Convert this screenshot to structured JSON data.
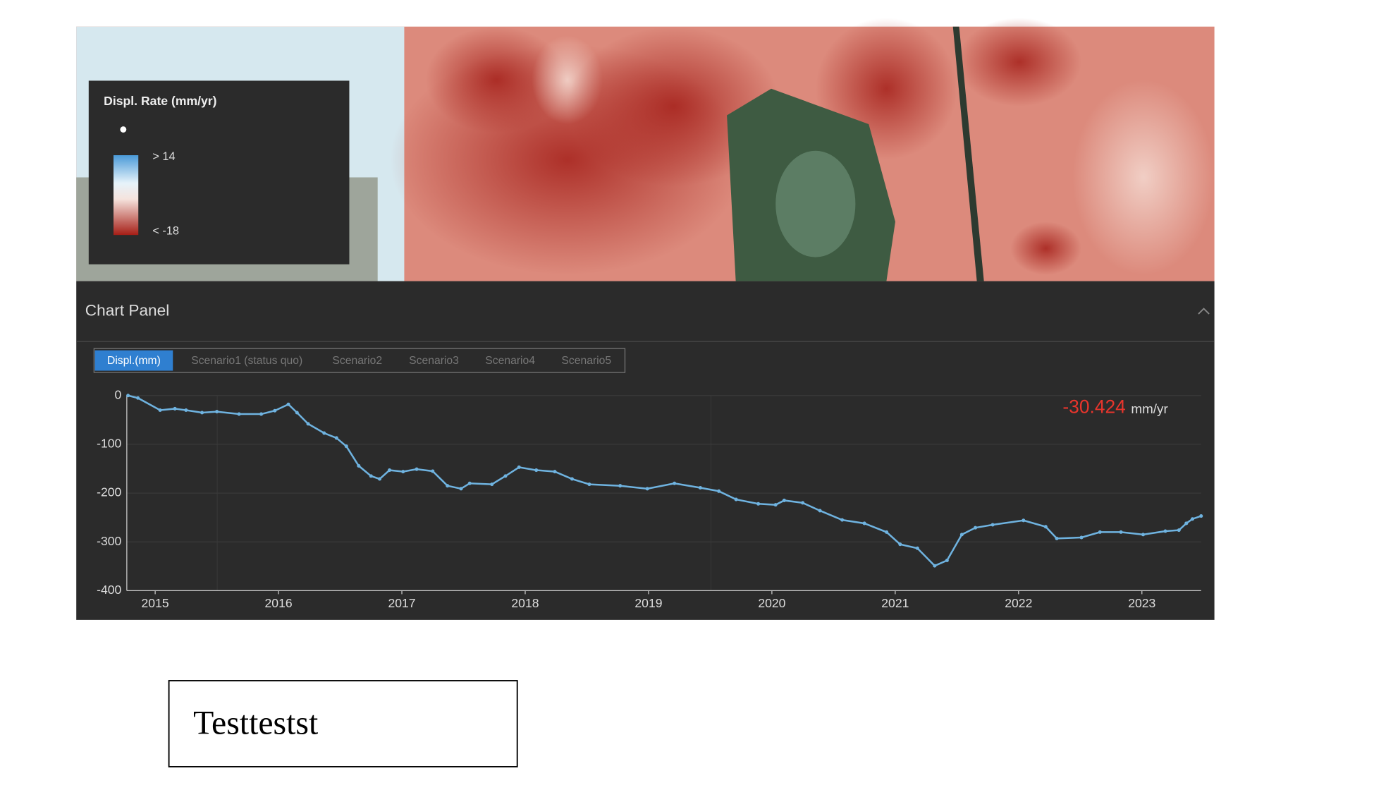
{
  "legend": {
    "title": "Displ. Rate (mm/yr)",
    "high": "> 14",
    "low": "< -18"
  },
  "panel": {
    "title": "Chart Panel"
  },
  "tabs": [
    "Displ.(mm)",
    "Scenario1 (status quo)",
    "Scenario2",
    "Scenario3",
    "Scenario4",
    "Scenario5"
  ],
  "chart_data": {
    "type": "line",
    "rate": "-30.424",
    "rate_unit": "mm/yr",
    "xlim": [
      2014.77,
      2023.48
    ],
    "xticks": [
      2015,
      2016,
      2017,
      2018,
      2019,
      2020,
      2021,
      2022,
      2023
    ],
    "ylim": [
      -400,
      0
    ],
    "yticks": [
      0,
      -100,
      -200,
      -300,
      -400
    ],
    "grid": true,
    "series": [
      {
        "name": "Displ.(mm)",
        "color": "#6fb3e0",
        "x": [
          2014.78,
          2014.86,
          2015.04,
          2015.16,
          2015.25,
          2015.38,
          2015.5,
          2015.68,
          2015.86,
          2015.97,
          2016.08,
          2016.15,
          2016.24,
          2016.37,
          2016.47,
          2016.55,
          2016.65,
          2016.75,
          2016.82,
          2016.9,
          2017.01,
          2017.12,
          2017.25,
          2017.37,
          2017.48,
          2017.55,
          2017.73,
          2017.84,
          2017.95,
          2018.09,
          2018.24,
          2018.38,
          2018.52,
          2018.77,
          2018.99,
          2019.21,
          2019.42,
          2019.57,
          2019.71,
          2019.89,
          2020.03,
          2020.1,
          2020.25,
          2020.39,
          2020.57,
          2020.75,
          2020.93,
          2021.04,
          2021.18,
          2021.32,
          2021.42,
          2021.54,
          2021.65,
          2021.79,
          2022.04,
          2022.22,
          2022.31,
          2022.51,
          2022.66,
          2022.83,
          2023.01,
          2023.19,
          2023.3,
          2023.36,
          2023.41,
          2023.48
        ],
        "values": [
          0,
          -5,
          -30,
          -27,
          -30,
          -35,
          -33,
          -38,
          -38,
          -31,
          -18,
          -35,
          -58,
          -77,
          -87,
          -104,
          -144,
          -165,
          -171,
          -153,
          -156,
          -151,
          -155,
          -185,
          -191,
          -180,
          -182,
          -165,
          -147,
          -153,
          -156,
          -171,
          -182,
          -185,
          -191,
          -180,
          -189,
          -196,
          -213,
          -222,
          -224,
          -215,
          -220,
          -236,
          -255,
          -262,
          -280,
          -305,
          -313,
          -349,
          -338,
          -285,
          -271,
          -265,
          -256,
          -269,
          -293,
          -291,
          -280,
          -280,
          -285,
          -278,
          -276,
          -262,
          -253,
          -247
        ]
      }
    ]
  },
  "textbox": {
    "text": "Testtestst"
  }
}
